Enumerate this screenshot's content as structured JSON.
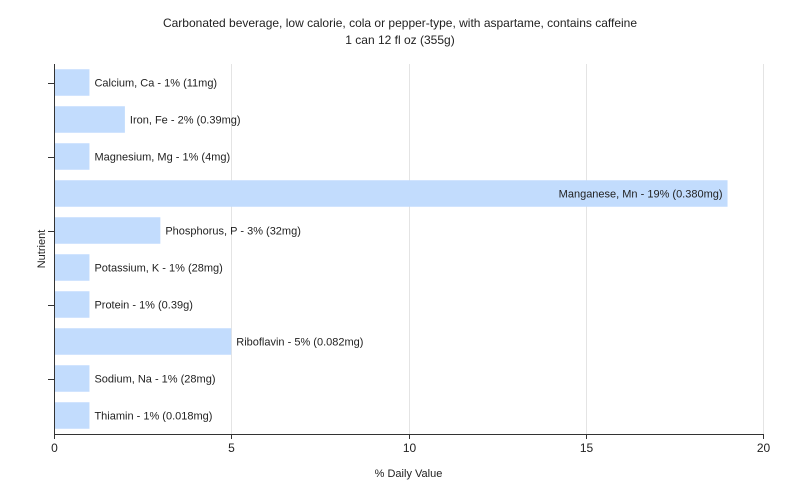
{
  "chart_data": {
    "type": "bar",
    "orientation": "horizontal",
    "title": "Carbonated beverage, low calorie, cola or pepper-type, with aspartame, contains caffeine",
    "subtitle": "1 can 12 fl oz (355g)",
    "xlabel": "% Daily Value",
    "ylabel": "Nutrient",
    "xlim": [
      0,
      20
    ],
    "xticks": [
      0,
      5,
      10,
      15,
      20
    ],
    "grid": true,
    "bar_color": "#c2dcfd",
    "grid_color": "#e4e4e4",
    "axis_color": "#333333",
    "categories": [
      "Calcium, Ca",
      "Iron, Fe",
      "Magnesium, Mg",
      "Manganese, Mn",
      "Phosphorus, P",
      "Potassium, K",
      "Protein",
      "Riboflavin",
      "Sodium, Na",
      "Thiamin"
    ],
    "values": [
      1,
      2,
      1,
      19,
      3,
      1,
      1,
      5,
      1,
      1
    ],
    "labels": [
      "Calcium, Ca - 1% (11mg)",
      "Iron, Fe - 2% (0.39mg)",
      "Magnesium, Mg - 1% (4mg)",
      "Manganese, Mn - 19% (0.380mg)",
      "Phosphorus, P - 3% (32mg)",
      "Potassium, K - 1% (28mg)",
      "Protein - 1% (0.39g)",
      "Riboflavin - 5% (0.082mg)",
      "Sodium, Na - 1% (28mg)",
      "Thiamin - 1% (0.018mg)"
    ]
  }
}
